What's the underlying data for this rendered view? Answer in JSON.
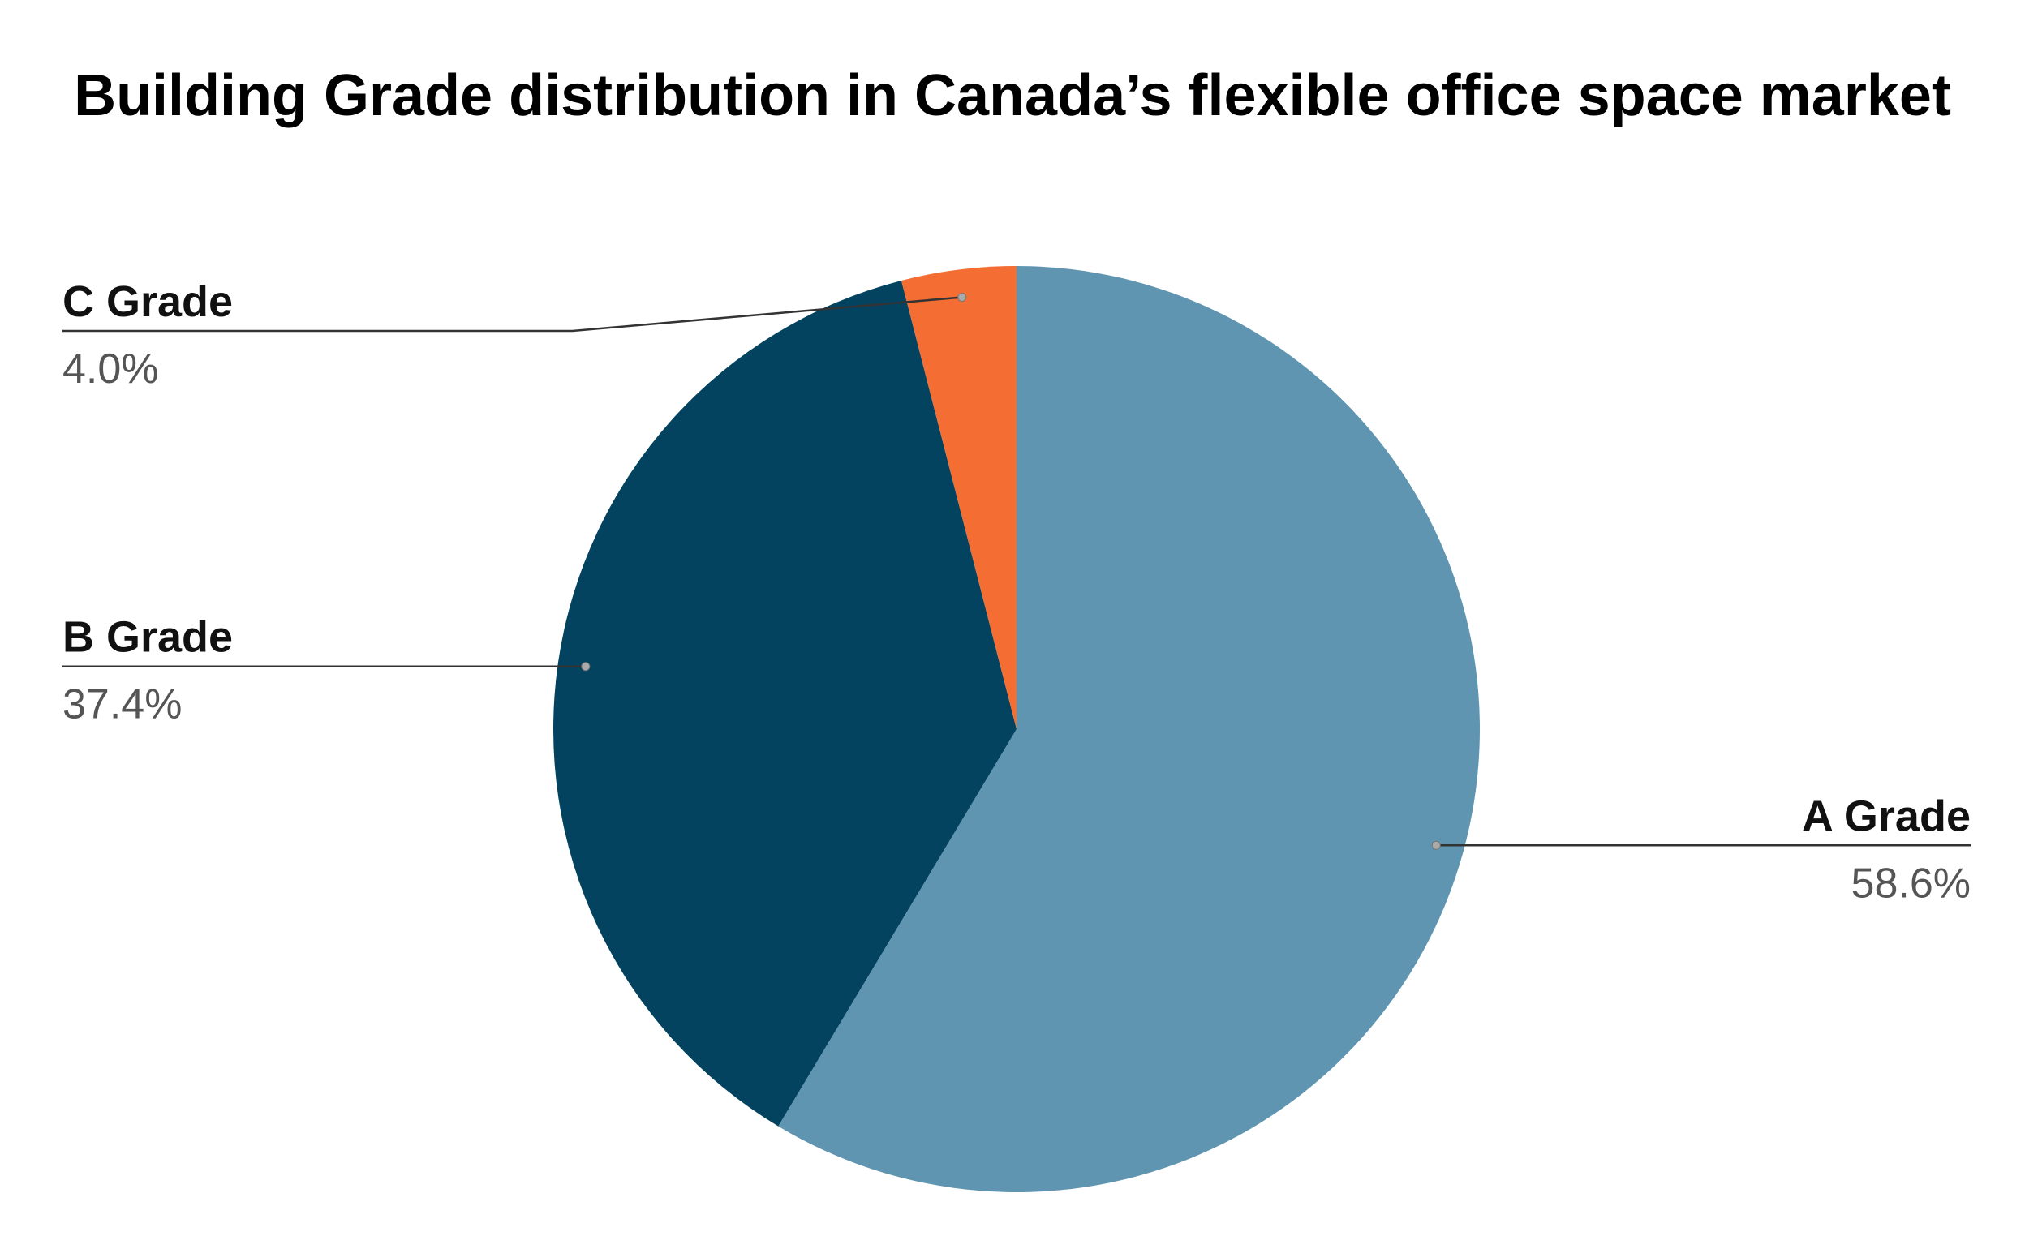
{
  "chart_data": {
    "type": "pie",
    "title": "Building Grade distribution in Canada’s flexible office space market",
    "categories": [
      "A Grade",
      "B Grade",
      "C Grade"
    ],
    "values": [
      58.6,
      37.4,
      4.0
    ],
    "value_labels": [
      "58.6%",
      "37.4%",
      "4.0%"
    ],
    "colors": [
      "#5f95b1",
      "#03435f",
      "#f46d33"
    ]
  }
}
